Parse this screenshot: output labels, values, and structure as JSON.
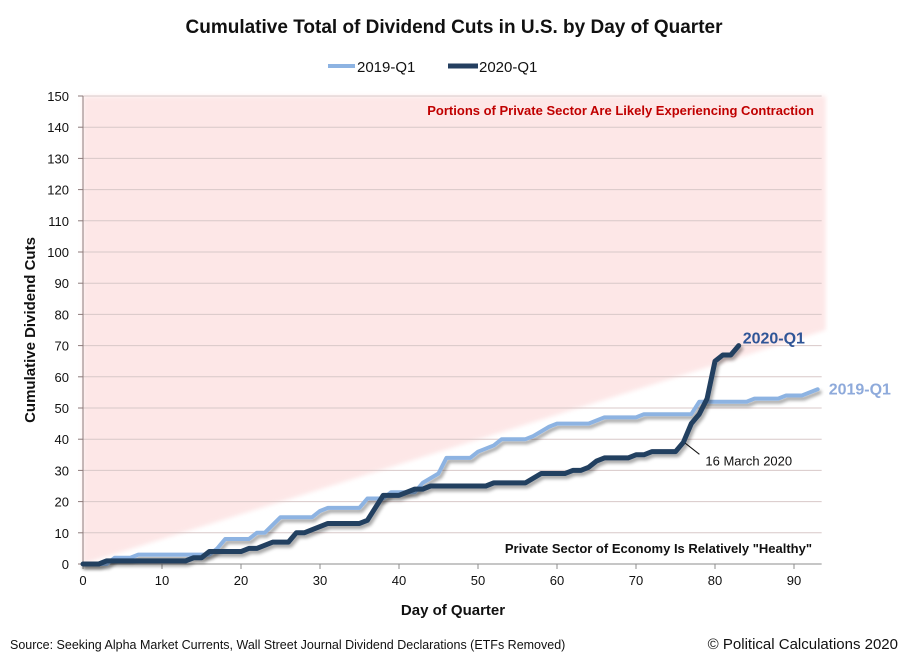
{
  "chart_data": {
    "type": "line",
    "title": "Cumulative Total of Dividend Cuts in U.S. by Day of Quarter",
    "xlabel": "Day of Quarter",
    "ylabel": "Cumulative Dividend Cuts",
    "xlim": [
      0,
      93.5
    ],
    "ylim": [
      0,
      150
    ],
    "x_ticks": [
      0,
      10,
      20,
      30,
      40,
      50,
      60,
      70,
      80,
      90
    ],
    "y_ticks": [
      0,
      10,
      20,
      30,
      40,
      50,
      60,
      70,
      80,
      90,
      100,
      110,
      120,
      130,
      140,
      150
    ],
    "grid": "horizontal",
    "legend": {
      "position": "top-center",
      "entries": [
        "2019-Q1",
        "2020-Q1"
      ]
    },
    "series": [
      {
        "name": "2019-Q1",
        "color": "#8db3e2",
        "end_label": "2019-Q1",
        "points": [
          [
            0,
            0
          ],
          [
            3,
            0
          ],
          [
            4,
            2
          ],
          [
            6,
            2
          ],
          [
            7,
            3
          ],
          [
            16,
            3
          ],
          [
            17,
            5
          ],
          [
            18,
            8
          ],
          [
            21,
            8
          ],
          [
            22,
            10
          ],
          [
            23,
            10
          ],
          [
            25,
            15
          ],
          [
            29,
            15
          ],
          [
            30,
            17
          ],
          [
            31,
            18
          ],
          [
            35,
            18
          ],
          [
            36,
            21
          ],
          [
            38,
            21
          ],
          [
            39,
            23
          ],
          [
            42,
            23
          ],
          [
            43,
            26
          ],
          [
            45,
            29
          ],
          [
            46,
            34
          ],
          [
            49,
            34
          ],
          [
            50,
            36
          ],
          [
            52,
            38
          ],
          [
            53,
            40
          ],
          [
            56,
            40
          ],
          [
            57,
            41
          ],
          [
            59,
            44
          ],
          [
            60,
            45
          ],
          [
            64,
            45
          ],
          [
            66,
            47
          ],
          [
            70,
            47
          ],
          [
            71,
            48
          ],
          [
            77,
            48
          ],
          [
            78,
            52
          ],
          [
            84,
            52
          ],
          [
            85,
            53
          ],
          [
            88,
            53
          ],
          [
            89,
            54
          ],
          [
            91,
            54
          ],
          [
            93,
            56
          ]
        ]
      },
      {
        "name": "2020-Q1",
        "color": "#243f60",
        "end_label": "2020-Q1",
        "points": [
          [
            0,
            0
          ],
          [
            2,
            0
          ],
          [
            3,
            1
          ],
          [
            13,
            1
          ],
          [
            14,
            2
          ],
          [
            15,
            2
          ],
          [
            16,
            4
          ],
          [
            20,
            4
          ],
          [
            21,
            5
          ],
          [
            22,
            5
          ],
          [
            24,
            7
          ],
          [
            26,
            7
          ],
          [
            27,
            10
          ],
          [
            28,
            10
          ],
          [
            31,
            13
          ],
          [
            35,
            13
          ],
          [
            36,
            14
          ],
          [
            38,
            22
          ],
          [
            40,
            22
          ],
          [
            42,
            24
          ],
          [
            43,
            24
          ],
          [
            44,
            25
          ],
          [
            51,
            25
          ],
          [
            52,
            26
          ],
          [
            56,
            26
          ],
          [
            58,
            29
          ],
          [
            61,
            29
          ],
          [
            62,
            30
          ],
          [
            63,
            30
          ],
          [
            64,
            31
          ],
          [
            65,
            33
          ],
          [
            66,
            34
          ],
          [
            69,
            34
          ],
          [
            70,
            35
          ],
          [
            71,
            35
          ],
          [
            72,
            36
          ],
          [
            75,
            36
          ],
          [
            76,
            39
          ],
          [
            77,
            45
          ],
          [
            78,
            48
          ],
          [
            79,
            53
          ],
          [
            80,
            65
          ],
          [
            81,
            67
          ],
          [
            82,
            67
          ],
          [
            83,
            70
          ]
        ]
      }
    ],
    "regions": [
      {
        "name": "contraction-zone",
        "color": "#fde7e7",
        "label": "Portions of Private Sector Are Likely Experiencing Contraction",
        "boundary_from": [
          0,
          0
        ],
        "boundary_to": [
          94,
          75
        ]
      },
      {
        "name": "healthy-zone",
        "label": "Private Sector of Economy Is Relatively \"Healthy\""
      }
    ],
    "annotations": [
      {
        "text": "16 March 2020",
        "series": "2020-Q1",
        "x": 76,
        "y": 39
      }
    ]
  },
  "footer": {
    "source": "Source: Seeking Alpha Market Currents, Wall Street Journal Dividend Declarations (ETFs Removed)",
    "copyright": "© Political Calculations 2020"
  }
}
